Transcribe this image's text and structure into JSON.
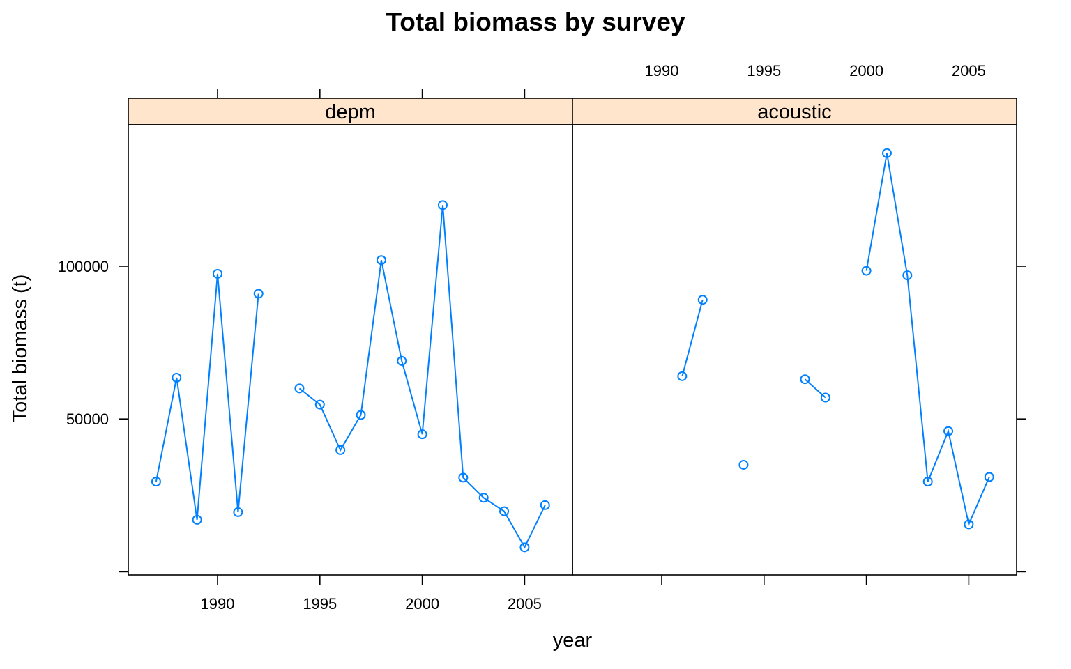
{
  "chart_data": {
    "type": "line",
    "title": "Total biomass by survey",
    "xlabel": "year",
    "ylabel": "Total biomass (t)",
    "xlim": [
      1986.3,
      2007.3
    ],
    "ylim": [
      -1000,
      147000
    ],
    "x_ticks": [
      1990,
      1995,
      2000,
      2005
    ],
    "y_ticks": [
      50000,
      100000
    ],
    "grid": false,
    "legend": "none",
    "strip_color": "#ffe5cc",
    "series_color": "#0080ff",
    "panels": [
      {
        "name": "depm",
        "points": [
          [
            1987,
            29500
          ],
          [
            1988,
            63500
          ],
          [
            1989,
            17000
          ],
          [
            1990,
            97500
          ],
          [
            1991,
            19500
          ],
          [
            1992,
            91000
          ],
          [
            1993,
            null
          ],
          [
            1994,
            60000
          ],
          [
            1995,
            54700
          ],
          [
            1996,
            39800
          ],
          [
            1997,
            51300
          ],
          [
            1998,
            102000
          ],
          [
            1999,
            69000
          ],
          [
            2000,
            45000
          ],
          [
            2001,
            120000
          ],
          [
            2002,
            30800
          ],
          [
            2003,
            24200
          ],
          [
            2004,
            19800
          ],
          [
            2005,
            8000
          ],
          [
            2006,
            21800
          ]
        ]
      },
      {
        "name": "acoustic",
        "points": [
          [
            1991,
            64000
          ],
          [
            1992,
            89000
          ],
          [
            1993,
            null
          ],
          [
            1994,
            35000
          ],
          [
            1995,
            null
          ],
          [
            1996,
            null
          ],
          [
            1997,
            63000
          ],
          [
            1998,
            57000
          ],
          [
            1999,
            null
          ],
          [
            2000,
            98500
          ],
          [
            2001,
            137000
          ],
          [
            2002,
            97000
          ],
          [
            2003,
            29500
          ],
          [
            2004,
            46000
          ],
          [
            2005,
            15500
          ],
          [
            2006,
            31000
          ]
        ]
      }
    ]
  }
}
